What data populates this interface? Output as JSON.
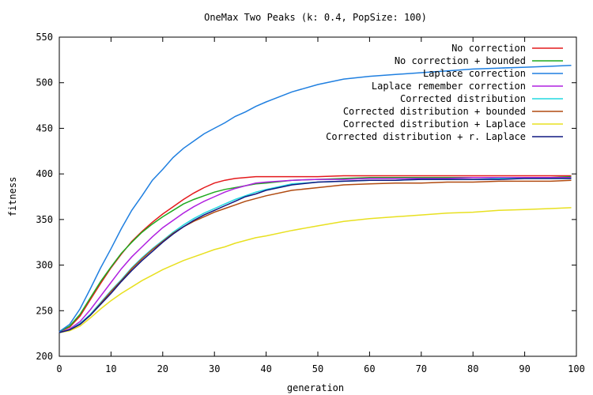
{
  "chart_data": {
    "type": "line",
    "title": "OneMax Two Peaks (k: 0.4, PopSize: 100)",
    "xlabel": "generation",
    "ylabel": "fitness",
    "xlim": [
      0,
      100
    ],
    "ylim": [
      200,
      550
    ],
    "x_ticks": [
      "0",
      "10",
      "20",
      "30",
      "40",
      "50",
      "60",
      "70",
      "80",
      "90",
      "100"
    ],
    "y_ticks": [
      "200",
      "250",
      "300",
      "350",
      "400",
      "450",
      "500",
      "550"
    ],
    "legend_position": "top-right",
    "grid": false,
    "x": [
      0,
      2,
      4,
      6,
      8,
      10,
      12,
      14,
      16,
      18,
      20,
      22,
      24,
      26,
      28,
      30,
      32,
      34,
      36,
      38,
      40,
      45,
      50,
      55,
      60,
      65,
      70,
      75,
      80,
      85,
      90,
      95,
      99
    ],
    "series": [
      {
        "name": "No correction",
        "color": "#e41a1c",
        "values": [
          227,
          232,
          244,
          262,
          280,
          297,
          312,
          326,
          337,
          347,
          356,
          364,
          372,
          379,
          385,
          390,
          393,
          395,
          396,
          397,
          397,
          397,
          397,
          398,
          398,
          398,
          398,
          398,
          398,
          398,
          398,
          398,
          398
        ]
      },
      {
        "name": "No correction + bounded",
        "color": "#1faa1f",
        "values": [
          227,
          233,
          246,
          264,
          282,
          298,
          313,
          325,
          336,
          345,
          353,
          360,
          367,
          372,
          376,
          380,
          383,
          385,
          387,
          389,
          390,
          393,
          394,
          395,
          396,
          396,
          396,
          396,
          396,
          396,
          396,
          396,
          397
        ]
      },
      {
        "name": "Laplace correction",
        "color": "#1f7fe0",
        "values": [
          227,
          235,
          252,
          274,
          297,
          318,
          340,
          360,
          376,
          393,
          405,
          418,
          428,
          436,
          444,
          450,
          456,
          463,
          468,
          474,
          479,
          490,
          498,
          504,
          507,
          509,
          511,
          513,
          515,
          516,
          517,
          518,
          519
        ]
      },
      {
        "name": "Laplace remember correction",
        "color": "#b020e0",
        "values": [
          226,
          230,
          238,
          251,
          266,
          281,
          296,
          309,
          320,
          331,
          341,
          349,
          357,
          364,
          370,
          375,
          380,
          384,
          387,
          390,
          391,
          393,
          394,
          394,
          395,
          395,
          395,
          395,
          396,
          396,
          396,
          396,
          396
        ]
      },
      {
        "name": "Corrected distribution",
        "color": "#20d8e0",
        "values": [
          226,
          229,
          236,
          246,
          259,
          272,
          284,
          297,
          308,
          318,
          327,
          336,
          344,
          351,
          357,
          362,
          367,
          372,
          376,
          380,
          383,
          389,
          391,
          392,
          393,
          393,
          394,
          394,
          394,
          395,
          395,
          395,
          395
        ]
      },
      {
        "name": "Corrected distribution + bounded",
        "color": "#b04a10",
        "values": [
          226,
          229,
          235,
          245,
          258,
          271,
          283,
          296,
          307,
          317,
          326,
          335,
          342,
          348,
          353,
          358,
          362,
          366,
          370,
          373,
          376,
          382,
          385,
          388,
          389,
          390,
          390,
          391,
          391,
          392,
          392,
          392,
          393
        ]
      },
      {
        "name": "Corrected distribution + Laplace",
        "color": "#e8e020",
        "values": [
          226,
          228,
          233,
          242,
          252,
          261,
          269,
          276,
          283,
          289,
          295,
          300,
          305,
          309,
          313,
          317,
          320,
          324,
          327,
          330,
          332,
          338,
          343,
          348,
          351,
          353,
          355,
          357,
          358,
          360,
          361,
          362,
          363
        ]
      },
      {
        "name": "Corrected distribution + r. Laplace",
        "color": "#101880",
        "values": [
          226,
          229,
          235,
          245,
          257,
          269,
          282,
          294,
          305,
          315,
          325,
          334,
          342,
          349,
          355,
          360,
          365,
          370,
          375,
          378,
          382,
          388,
          391,
          392,
          393,
          393,
          394,
          394,
          394,
          394,
          395,
          395,
          395
        ]
      }
    ]
  }
}
